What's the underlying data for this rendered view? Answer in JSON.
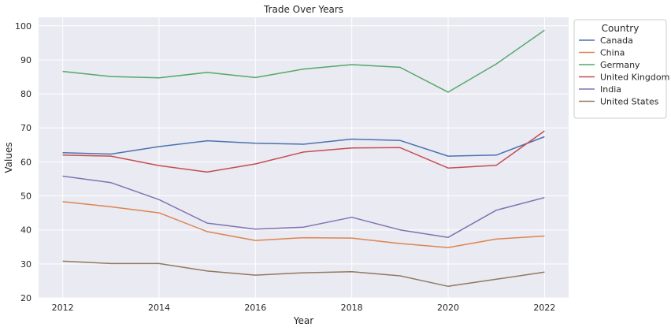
{
  "chart_data": {
    "type": "line",
    "title": "Trade Over Years",
    "xlabel": "Year",
    "ylabel": "Values",
    "x": [
      2012,
      2013,
      2014,
      2015,
      2016,
      2017,
      2018,
      2019,
      2020,
      2021,
      2022
    ],
    "xticks": [
      "2012",
      "2014",
      "2016",
      "2018",
      "2020",
      "2022"
    ],
    "yticks": [
      "20",
      "30",
      "40",
      "50",
      "60",
      "70",
      "80",
      "90",
      "100"
    ],
    "xlim": [
      2011.5,
      2022.5
    ],
    "ylim": [
      20,
      102.5
    ],
    "grid": true,
    "legend": {
      "title": "Country",
      "placement": "outside-top-right"
    },
    "series": [
      {
        "name": "Canada",
        "color": "#4c72b0",
        "values": [
          62.7,
          62.3,
          64.5,
          66.2,
          65.5,
          65.2,
          66.7,
          66.3,
          61.7,
          62.0,
          67.4
        ]
      },
      {
        "name": "China",
        "color": "#dd8452",
        "values": [
          48.3,
          46.8,
          45.0,
          39.5,
          36.9,
          37.7,
          37.6,
          36.0,
          34.8,
          37.3,
          38.2
        ]
      },
      {
        "name": "Germany",
        "color": "#55a868",
        "values": [
          86.6,
          85.1,
          84.7,
          86.3,
          84.8,
          87.3,
          88.6,
          87.8,
          80.5,
          88.8,
          98.7
        ]
      },
      {
        "name": "United Kingdom",
        "color": "#c44e52",
        "values": [
          62.0,
          61.7,
          58.9,
          57.0,
          59.4,
          62.9,
          64.1,
          64.2,
          58.2,
          59.0,
          69.1
        ]
      },
      {
        "name": "India",
        "color": "#8172b3",
        "values": [
          55.8,
          53.9,
          48.9,
          42.0,
          40.2,
          40.8,
          43.7,
          40.0,
          37.8,
          45.8,
          49.5
        ]
      },
      {
        "name": "United States",
        "color": "#937860",
        "values": [
          30.8,
          30.1,
          30.1,
          27.9,
          26.7,
          27.4,
          27.7,
          26.5,
          23.4,
          25.5,
          27.6
        ]
      }
    ]
  }
}
